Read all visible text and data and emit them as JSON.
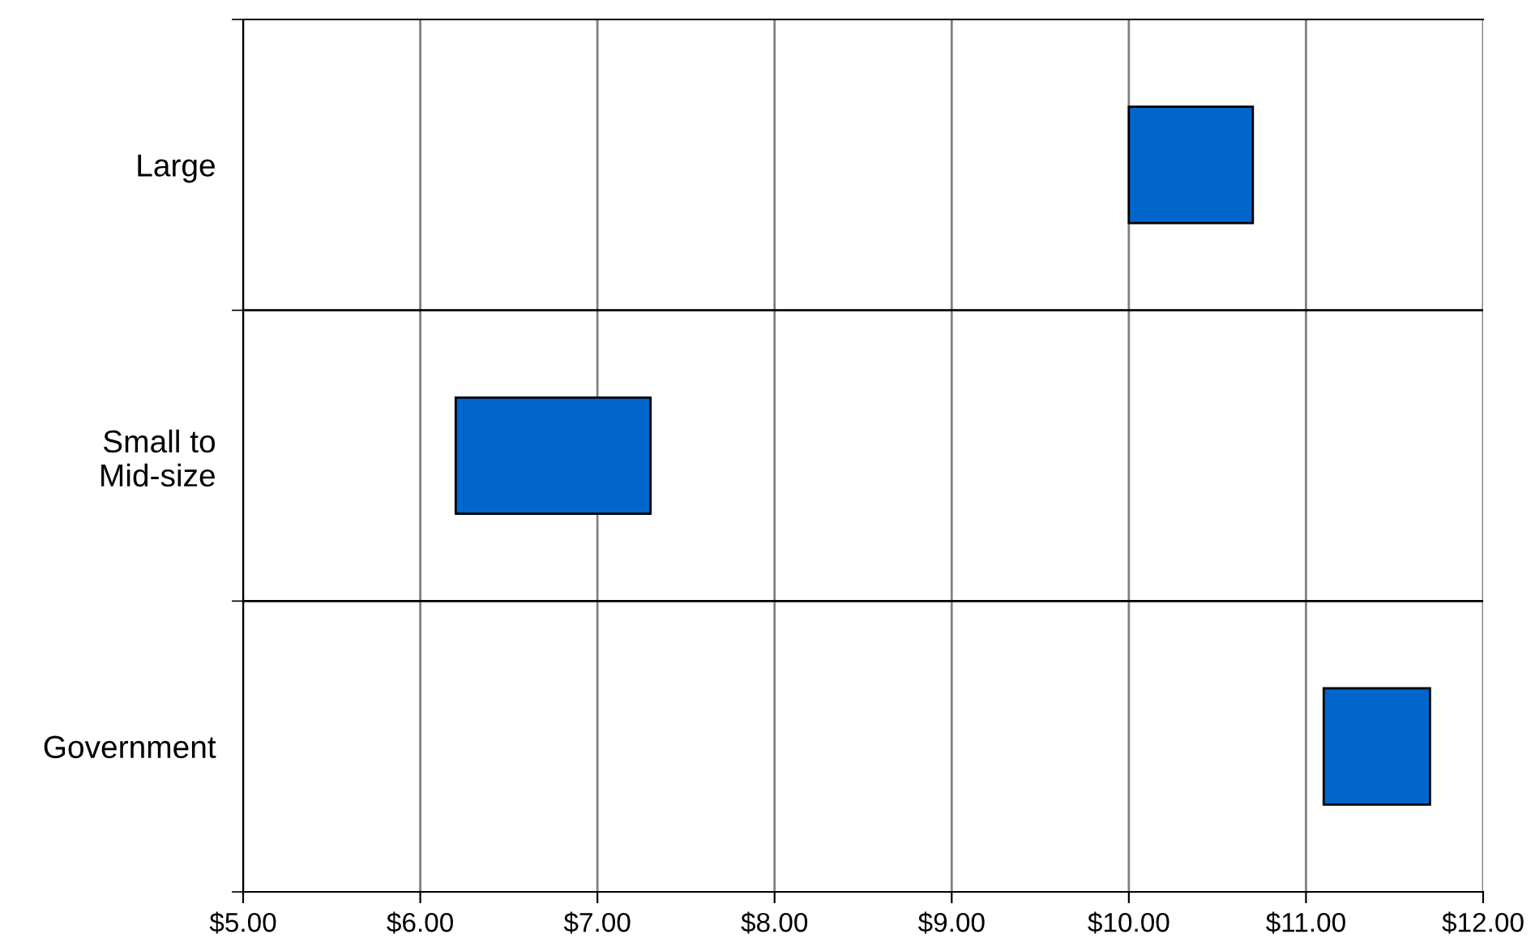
{
  "chart_data": {
    "type": "bar",
    "orientation": "horizontal",
    "categories": [
      "Large",
      "Small to\nMid-size",
      "Government"
    ],
    "base": [
      10.0,
      6.2,
      11.1
    ],
    "values": [
      0.7,
      1.1,
      0.6
    ],
    "color": "#0066cc",
    "xlim": [
      5,
      12
    ],
    "xticks": [
      {
        "value": 5,
        "label": "$5.00"
      },
      {
        "value": 6,
        "label": "$6.00"
      },
      {
        "value": 7,
        "label": "$7.00"
      },
      {
        "value": 8,
        "label": "$8.00"
      },
      {
        "value": 9,
        "label": "$9.00"
      },
      {
        "value": 10,
        "label": "$10.00"
      },
      {
        "value": 11,
        "label": "$11.00"
      },
      {
        "value": 12,
        "label": "$12.00"
      }
    ],
    "grid": "x"
  }
}
